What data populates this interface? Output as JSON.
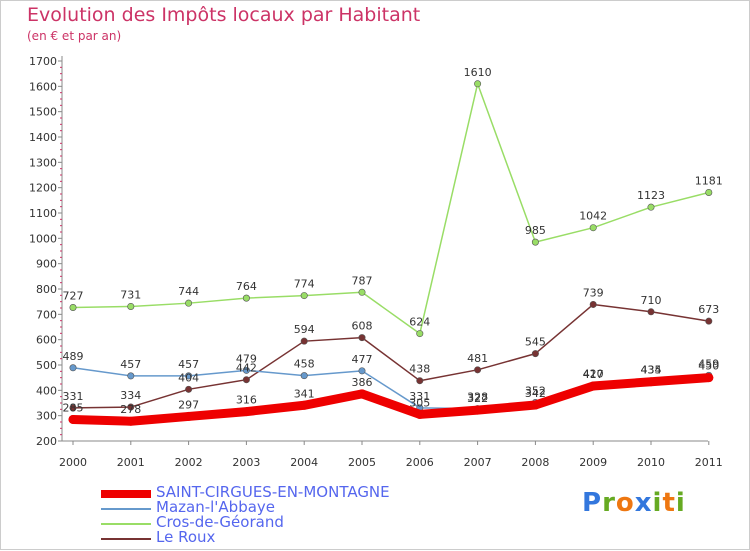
{
  "title": "Evolution des Impôts locaux par Habitant",
  "subtitle": "(en € et par an)",
  "logo": {
    "letters": [
      "P",
      "r",
      "o",
      "x",
      "i",
      "t",
      "i"
    ],
    "colors": [
      "#3377dd",
      "#66aa22",
      "#ee7711",
      "#3377dd",
      "#66aa22",
      "#ee7711",
      "#66aa22"
    ]
  },
  "chart_data": {
    "type": "line",
    "categories": [
      "2000",
      "2001",
      "2002",
      "2003",
      "2004",
      "2005",
      "2006",
      "2007",
      "2008",
      "2009",
      "2010",
      "2011"
    ],
    "ylim": [
      200,
      1700
    ],
    "yticks": [
      200,
      300,
      400,
      500,
      600,
      700,
      800,
      900,
      1000,
      1100,
      1200,
      1300,
      1400,
      1500,
      1600,
      1700
    ],
    "grid": false,
    "legend_position": "bottom-left",
    "series": [
      {
        "name": "SAINT-CIRGUES-EN-MONTAGNE",
        "color": "#ee0000",
        "values": [
          285,
          278,
          297,
          316,
          341,
          386,
          305,
          322,
          342,
          417,
          434,
          450
        ]
      },
      {
        "name": "Mazan-l'Abbaye",
        "color": "#6699cc",
        "values": [
          489,
          457,
          457,
          479,
          458,
          477,
          331,
          328,
          352,
          420,
          435,
          459
        ]
      },
      {
        "name": "Cros-de-Géorand",
        "color": "#99dd66",
        "values": [
          727,
          731,
          744,
          764,
          774,
          787,
          624,
          1610,
          985,
          1042,
          1123,
          1181
        ]
      },
      {
        "name": "Le Roux",
        "color": "#773333",
        "values": [
          331,
          334,
          404,
          442,
          594,
          608,
          438,
          481,
          545,
          739,
          710,
          673
        ]
      }
    ]
  }
}
